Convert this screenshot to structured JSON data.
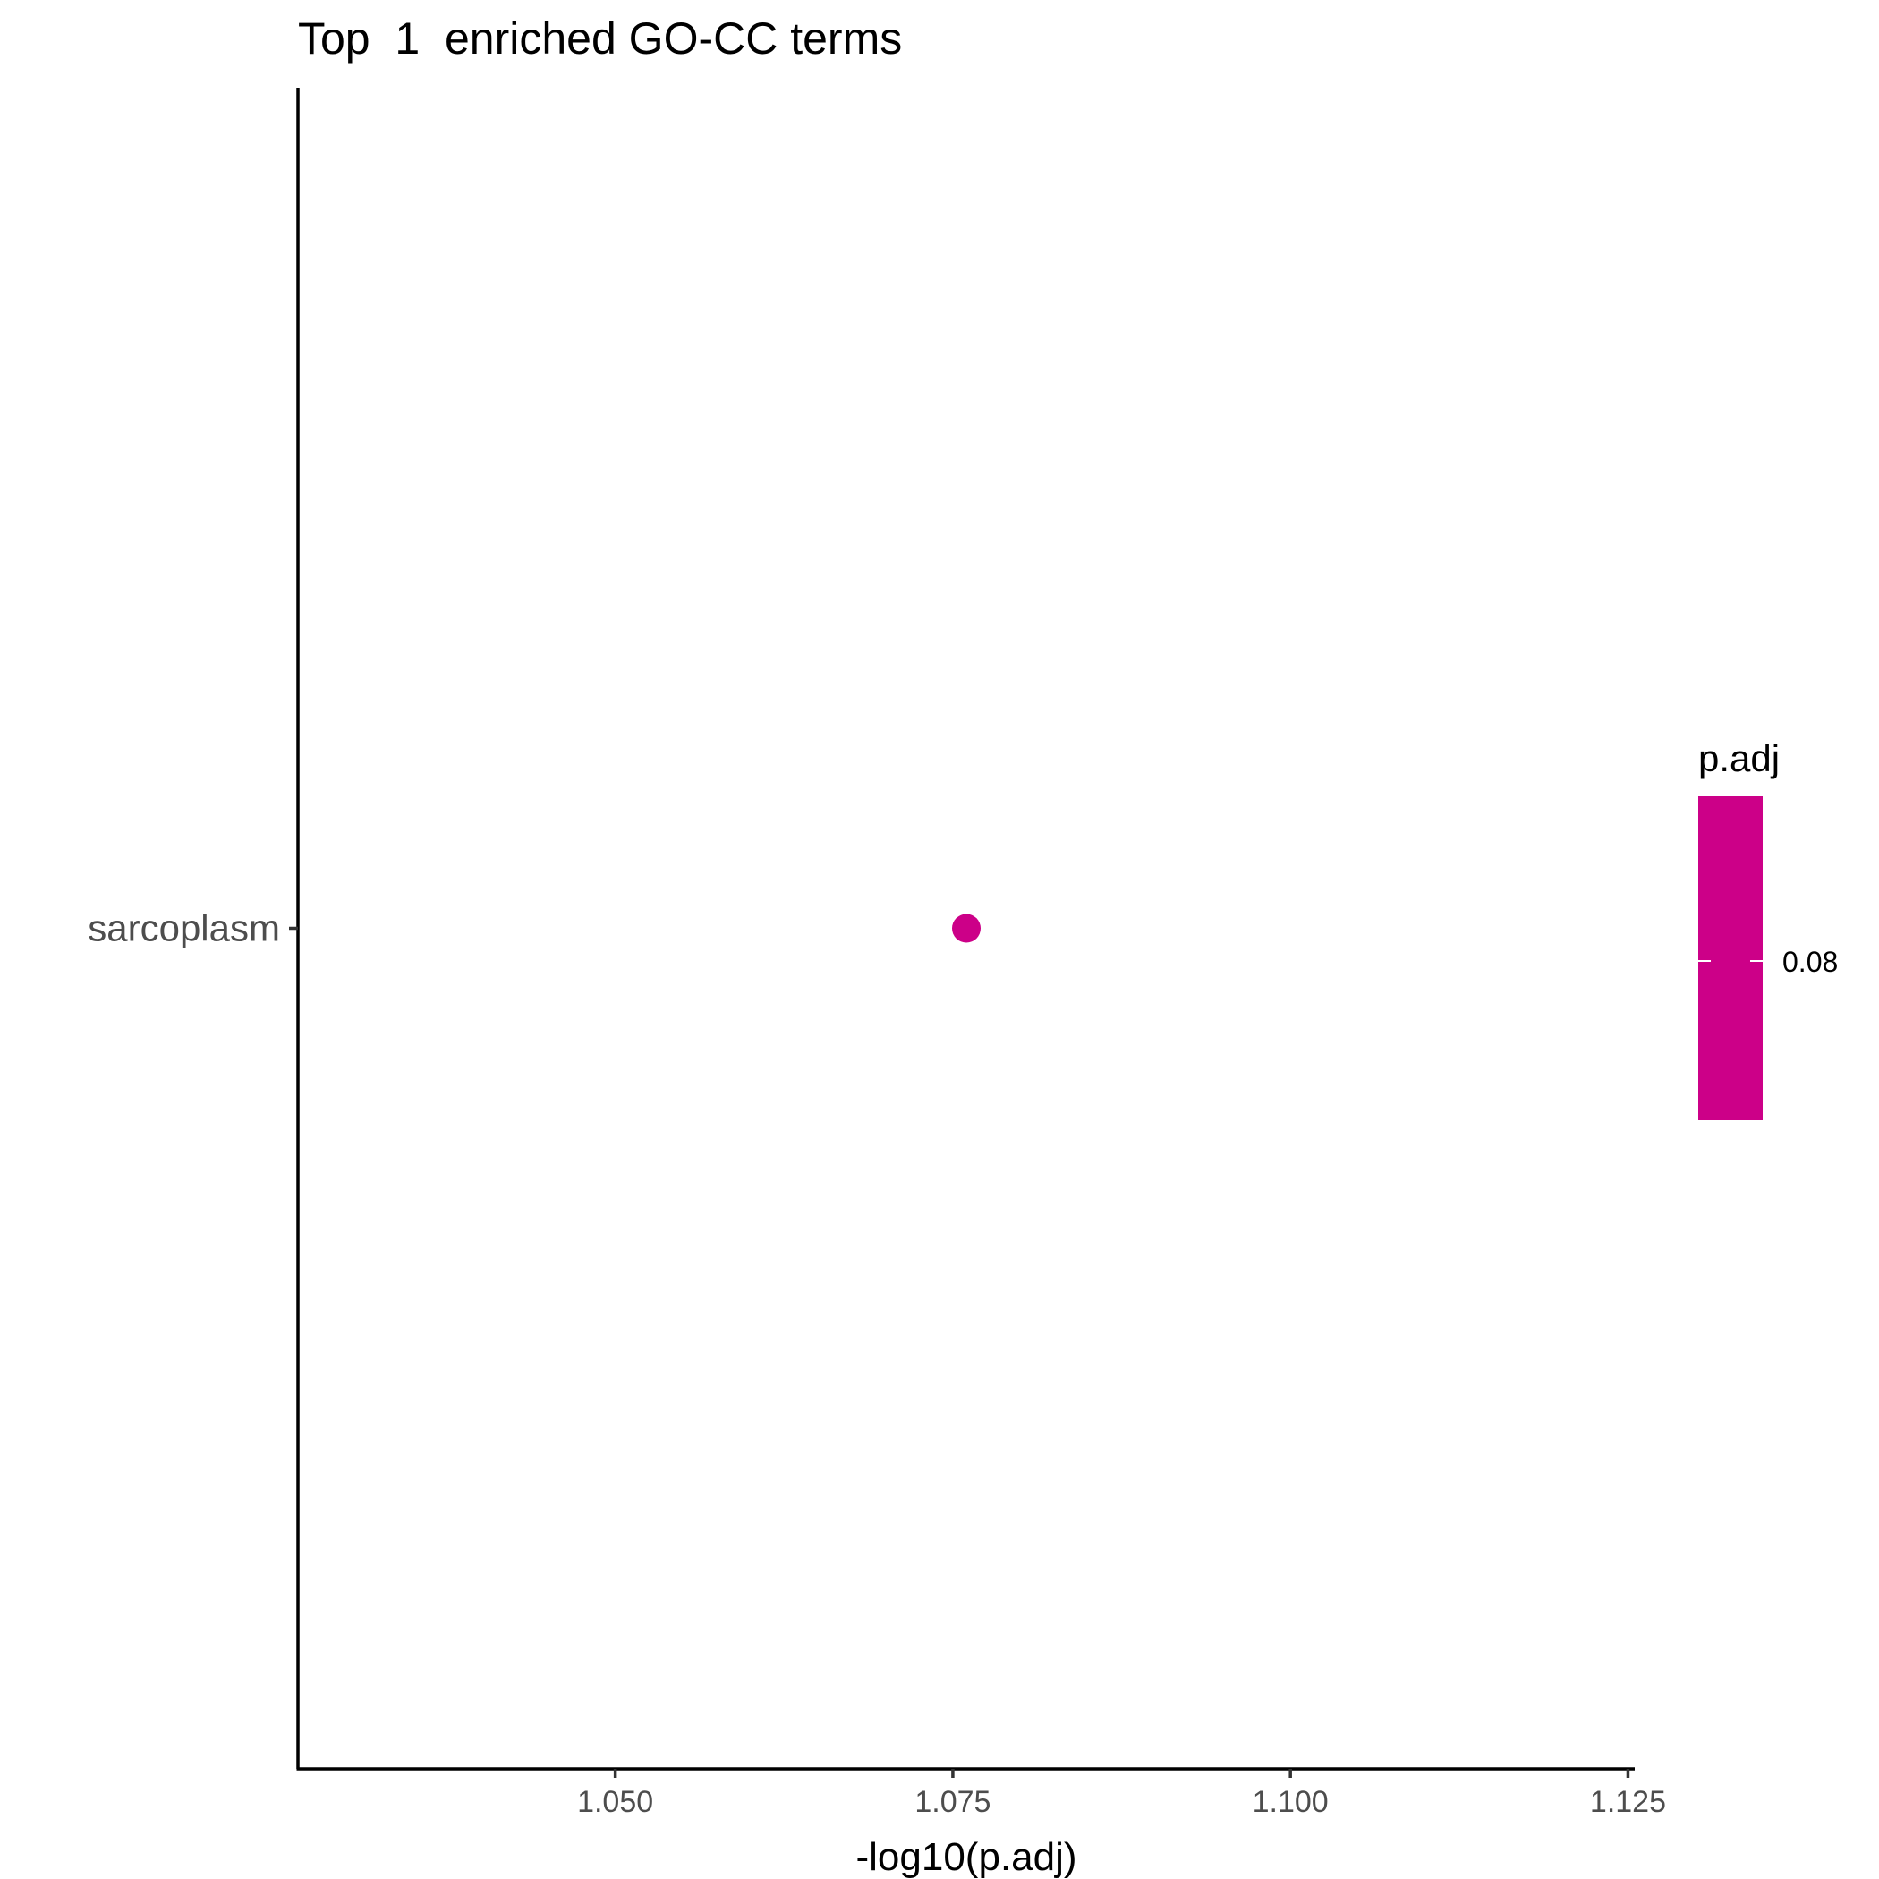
{
  "chart_data": {
    "type": "scatter",
    "title": "Top  1  enriched GO-CC terms",
    "xlabel": "-log10(p.adj)",
    "ylabel": "",
    "xlim": [
      1.0265,
      1.1255
    ],
    "x_ticks": [
      1.05,
      1.075,
      1.1,
      1.125
    ],
    "x_tick_labels": [
      "1.050",
      "1.075",
      "1.100",
      "1.125"
    ],
    "categories": [
      "sarcoplasm"
    ],
    "points": [
      {
        "category": "sarcoplasm",
        "x": 1.076,
        "p_adj": 0.084,
        "color": "#CC0088"
      }
    ],
    "grid": false,
    "legend": {
      "title": "p.adj",
      "placement": "right",
      "type": "colorbar",
      "tick_values": [
        0.08
      ],
      "tick_labels": [
        "0.08"
      ],
      "color": "#CC0088"
    }
  }
}
